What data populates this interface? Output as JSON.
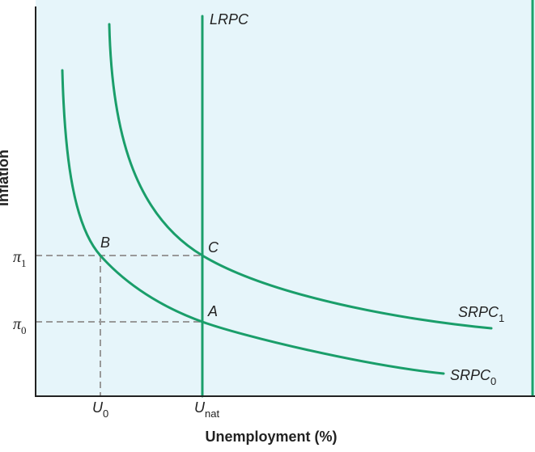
{
  "axes": {
    "y_label": "Inflation",
    "x_label": "Unemployment (%)"
  },
  "curves": {
    "lrpc": "LRPC",
    "srpc1": {
      "base": "SRPC",
      "sub": "1"
    },
    "srpc0": {
      "base": "SRPC",
      "sub": "0"
    }
  },
  "points": {
    "a": "A",
    "b": "B",
    "c": "C"
  },
  "y_ticks": [
    {
      "base": "π",
      "sub": "1"
    },
    {
      "base": "π",
      "sub": "0"
    }
  ],
  "x_ticks": [
    {
      "base": "U",
      "sub": "0"
    },
    {
      "base": "U",
      "sub": "nat"
    }
  ]
}
